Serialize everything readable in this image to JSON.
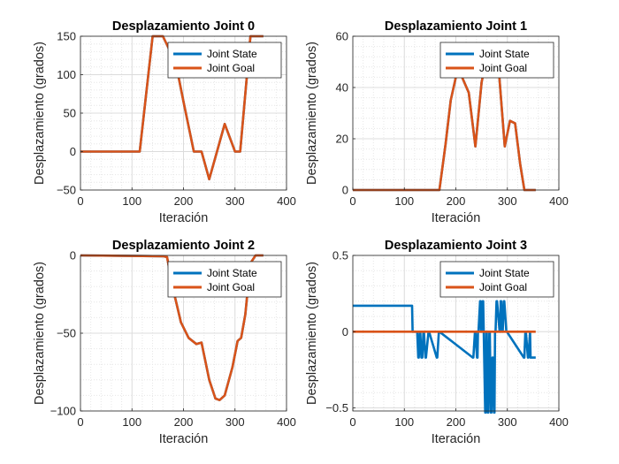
{
  "chart_data": [
    {
      "type": "line",
      "title": "Desplazamiento Joint 0",
      "xlabel": "Iteración",
      "ylabel": "Desplazamiento (grados)",
      "xlim": [
        0,
        400
      ],
      "ylim": [
        -50,
        150
      ],
      "xticks": [
        0,
        100,
        200,
        300,
        400
      ],
      "yticks": [
        -50,
        0,
        50,
        100,
        150
      ],
      "grid": "major+minor",
      "legend_position": "top-right",
      "series": [
        {
          "name": "Joint State",
          "color": "#0072BD",
          "x": [
            0,
            115,
            140,
            160,
            185,
            200,
            220,
            235,
            250,
            265,
            280,
            300,
            310,
            330,
            355
          ],
          "y": [
            0,
            0,
            150,
            150,
            115,
            65,
            0,
            0,
            -36,
            0,
            36,
            0,
            0,
            150,
            150
          ]
        },
        {
          "name": "Joint Goal",
          "color": "#D95319",
          "x": [
            0,
            115,
            140,
            160,
            185,
            200,
            220,
            235,
            250,
            265,
            280,
            300,
            310,
            330,
            355
          ],
          "y": [
            0,
            0,
            150,
            150,
            115,
            65,
            0,
            0,
            -36,
            0,
            36,
            0,
            0,
            150,
            150
          ]
        }
      ]
    },
    {
      "type": "line",
      "title": "Desplazamiento Joint 1",
      "xlabel": "Iteración",
      "ylabel": "Desplazamiento (grados)",
      "xlim": [
        0,
        400
      ],
      "ylim": [
        0,
        60
      ],
      "xticks": [
        0,
        100,
        200,
        300,
        400
      ],
      "yticks": [
        0,
        20,
        40,
        60
      ],
      "grid": "major+minor",
      "legend_position": "top-right",
      "series": [
        {
          "name": "Joint State",
          "color": "#0072BD",
          "x": [
            0,
            168,
            180,
            190,
            200,
            210,
            225,
            238,
            250,
            265,
            272,
            283,
            295,
            305,
            315,
            325,
            333,
            355
          ],
          "y": [
            0,
            0,
            18,
            35,
            44,
            45,
            38,
            17,
            42,
            57,
            56,
            48,
            17,
            27,
            26,
            10,
            0,
            0
          ]
        },
        {
          "name": "Joint Goal",
          "color": "#D95319",
          "x": [
            0,
            168,
            180,
            190,
            200,
            210,
            225,
            238,
            250,
            265,
            272,
            283,
            295,
            305,
            315,
            325,
            333,
            355
          ],
          "y": [
            0,
            0,
            18,
            35,
            44,
            45,
            38,
            17,
            42,
            57,
            56,
            48,
            17,
            27,
            26,
            10,
            0,
            0
          ]
        }
      ]
    },
    {
      "type": "line",
      "title": "Desplazamiento Joint 2",
      "xlabel": "Iteración",
      "ylabel": "Desplazamiento (grados)",
      "xlim": [
        0,
        400
      ],
      "ylim": [
        -100,
        0
      ],
      "xticks": [
        0,
        100,
        200,
        300,
        400
      ],
      "yticks": [
        -100,
        -50,
        0
      ],
      "grid": "major+minor",
      "legend_position": "top-right",
      "series": [
        {
          "name": "Joint State",
          "color": "#0072BD",
          "x": [
            0,
            160,
            168,
            180,
            195,
            210,
            225,
            235,
            250,
            262,
            270,
            280,
            295,
            305,
            312,
            320,
            330,
            340,
            355
          ],
          "y": [
            0,
            -0.5,
            -1,
            -22,
            -43,
            -53,
            -57,
            -56,
            -80,
            -92,
            -93,
            -90,
            -72,
            -55,
            -53,
            -38,
            -5,
            0,
            0
          ]
        },
        {
          "name": "Joint Goal",
          "color": "#D95319",
          "x": [
            0,
            160,
            168,
            180,
            195,
            210,
            225,
            235,
            250,
            262,
            270,
            280,
            295,
            305,
            312,
            320,
            330,
            340,
            355
          ],
          "y": [
            0,
            -0.5,
            -1,
            -22,
            -43,
            -53,
            -57,
            -56,
            -80,
            -92,
            -93,
            -90,
            -72,
            -55,
            -53,
            -38,
            -5,
            0,
            0
          ]
        }
      ]
    },
    {
      "type": "line",
      "title": "Desplazamiento Joint 3",
      "xlabel": "Iteración",
      "ylabel": "Desplazamiento (grados)",
      "xlim": [
        0,
        400
      ],
      "ylim": [
        -0.52,
        0.5
      ],
      "xticks": [
        0,
        100,
        200,
        300,
        400
      ],
      "yticks": [
        -0.5,
        0,
        0.5
      ],
      "ytick_labels": [
        "-0.5",
        "0",
        "0.5"
      ],
      "grid": "major+minor",
      "legend_position": "top-right",
      "series": [
        {
          "name": "Joint State",
          "color": "#0072BD",
          "x": [
            0,
            115,
            116,
            125,
            127,
            128,
            130,
            131,
            133,
            135,
            137,
            138,
            141,
            142,
            147,
            148,
            163,
            164,
            167,
            168,
            233,
            234,
            237,
            238,
            241,
            242,
            243,
            244,
            247,
            248,
            249,
            250,
            252,
            253,
            257,
            258,
            259,
            260,
            262,
            263,
            265,
            266,
            268,
            269,
            271,
            272,
            274,
            275,
            276,
            277,
            279,
            280,
            285,
            286,
            287,
            288,
            290,
            291,
            293,
            294,
            298,
            299,
            332,
            333,
            335,
            336,
            340,
            341,
            344,
            345,
            355
          ],
          "y": [
            0.17,
            0.17,
            0,
            0,
            -0.17,
            -0.17,
            0,
            0,
            -0.17,
            -0.17,
            0,
            0,
            -0.17,
            -0.17,
            0,
            0,
            -0.17,
            -0.17,
            0,
            0,
            -0.17,
            -0.17,
            0,
            0,
            -0.17,
            -0.17,
            0,
            0,
            0.2,
            0.2,
            0,
            0,
            0.2,
            0.2,
            -0.53,
            -0.53,
            0,
            0,
            -0.53,
            -0.53,
            0,
            0,
            -0.53,
            -0.53,
            -0.17,
            -0.17,
            -0.53,
            -0.53,
            0,
            0,
            0.2,
            0.2,
            0,
            0,
            0.2,
            0.2,
            0,
            0,
            0.2,
            0.2,
            0,
            0,
            -0.17,
            -0.17,
            0,
            0,
            -0.17,
            -0.17,
            0,
            -0.17,
            -0.17
          ]
        },
        {
          "name": "Joint Goal",
          "color": "#D95319",
          "x": [
            0,
            355
          ],
          "y": [
            0,
            0
          ]
        }
      ]
    }
  ]
}
